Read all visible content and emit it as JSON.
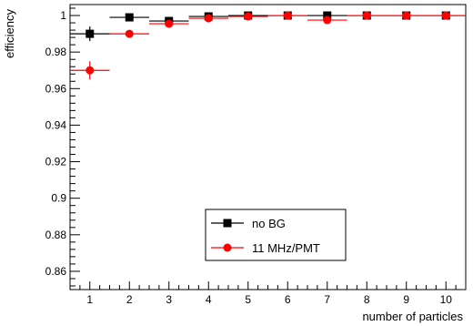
{
  "chart_data": {
    "type": "scatter",
    "xlabel": "number of particles",
    "ylabel": "efficiency",
    "xlim": [
      0.5,
      10.5
    ],
    "ylim": [
      0.85,
      1.006
    ],
    "x_ticks": [
      1,
      2,
      3,
      4,
      5,
      6,
      7,
      8,
      9,
      10
    ],
    "x_tick_labels": [
      "1",
      "2",
      "3",
      "4",
      "5",
      "6",
      "7",
      "8",
      "9",
      "10"
    ],
    "y_ticks": [
      0.86,
      0.88,
      0.9,
      0.92,
      0.94,
      0.96,
      0.98,
      1
    ],
    "y_tick_labels": [
      "0.86",
      "0.88",
      "0.9",
      "0.92",
      "0.94",
      "0.96",
      "0.98",
      "1"
    ],
    "grid": false,
    "legend_position": "bottom-center",
    "series": [
      {
        "name": "no BG",
        "marker": "square",
        "color": "#000000",
        "x": [
          1,
          2,
          3,
          4,
          5,
          6,
          7,
          8,
          9,
          10
        ],
        "y": [
          0.99,
          0.999,
          0.997,
          0.9995,
          1.0,
          1.0,
          1.0,
          1.0,
          1.0,
          1.0
        ],
        "yerr": [
          0.004,
          0.001,
          0.001,
          0.0007,
          0.0004,
          0.0003,
          0.0003,
          0.0002,
          0.0002,
          0.0002
        ],
        "xerr": 0.5
      },
      {
        "name": "11 MHz/PMT",
        "marker": "circle",
        "color": "#ff0000",
        "x": [
          1,
          2,
          3,
          4,
          5,
          6,
          7,
          8,
          9,
          10
        ],
        "y": [
          0.97,
          0.99,
          0.9955,
          0.9985,
          0.9995,
          1.0,
          0.9975,
          1.0,
          1.0,
          1.0
        ],
        "yerr": [
          0.005,
          0.0015,
          0.0012,
          0.0008,
          0.0006,
          0.0004,
          0.001,
          0.0003,
          0.0002,
          0.0002
        ],
        "xerr": 0.5
      }
    ]
  }
}
